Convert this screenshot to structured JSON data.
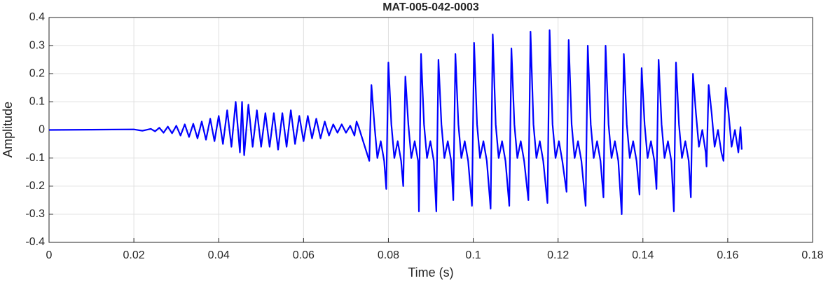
{
  "chart_data": {
    "type": "line",
    "title": "MAT-005-042-0003",
    "xlabel": "Time (s)",
    "ylabel": "Amplitude",
    "color": "#0000ff",
    "grid": true,
    "xlim": [
      0,
      0.18
    ],
    "xticks": [
      0,
      0.02,
      0.04,
      0.06,
      0.08,
      0.1,
      0.12,
      0.14,
      0.16,
      0.18
    ],
    "ylim": [
      -0.4,
      0.4
    ],
    "yticks": [
      -0.4,
      -0.3,
      -0.2,
      -0.1,
      0,
      0.1,
      0.2,
      0.3,
      0.4
    ],
    "x": [
      0,
      0.01,
      0.02,
      0.022,
      0.024,
      0.025,
      0.026,
      0.027,
      0.028,
      0.029,
      0.03,
      0.031,
      0.032,
      0.033,
      0.034,
      0.035,
      0.036,
      0.037,
      0.038,
      0.039,
      0.04,
      0.041,
      0.042,
      0.043,
      0.044,
      0.045,
      0.0455,
      0.046,
      0.047,
      0.048,
      0.049,
      0.05,
      0.051,
      0.052,
      0.053,
      0.054,
      0.055,
      0.056,
      0.057,
      0.058,
      0.059,
      0.06,
      0.061,
      0.062,
      0.063,
      0.064,
      0.065,
      0.066,
      0.067,
      0.068,
      0.069,
      0.07,
      0.071,
      0.072,
      0.0725,
      0.073,
      0.0755,
      0.076,
      0.0767,
      0.0774,
      0.0782,
      0.079,
      0.0795,
      0.08,
      0.0807,
      0.0814,
      0.0822,
      0.083,
      0.0835,
      0.084,
      0.0847,
      0.0854,
      0.0862,
      0.087,
      0.0872,
      0.0877,
      0.0884,
      0.0891,
      0.0899,
      0.0907,
      0.0913,
      0.0918,
      0.0925,
      0.0932,
      0.094,
      0.0948,
      0.0953,
      0.0958,
      0.0965,
      0.0972,
      0.098,
      0.0988,
      0.0997,
      0.1002,
      0.1009,
      0.1016,
      0.1024,
      0.1032,
      0.1041,
      0.1046,
      0.1053,
      0.106,
      0.1068,
      0.1076,
      0.1085,
      0.109,
      0.1097,
      0.1104,
      0.1112,
      0.112,
      0.113,
      0.1135,
      0.1142,
      0.1149,
      0.1157,
      0.1165,
      0.1175,
      0.118,
      0.1187,
      0.1194,
      0.1202,
      0.121,
      0.122,
      0.1225,
      0.1232,
      0.1239,
      0.1247,
      0.1255,
      0.1265,
      0.127,
      0.1277,
      0.1284,
      0.1292,
      0.13,
      0.1307,
      0.1312,
      0.1319,
      0.1326,
      0.1334,
      0.1342,
      0.135,
      0.1355,
      0.1362,
      0.1369,
      0.1377,
      0.1385,
      0.1392,
      0.1397,
      0.1404,
      0.1411,
      0.1419,
      0.1427,
      0.1432,
      0.1437,
      0.1444,
      0.1451,
      0.1459,
      0.1467,
      0.1473,
      0.1478,
      0.1485,
      0.1492,
      0.15,
      0.1508,
      0.1513,
      0.1518,
      0.1525,
      0.1532,
      0.154,
      0.1548,
      0.155,
      0.1555,
      0.1562,
      0.1569,
      0.1577,
      0.1585,
      0.159,
      0.1595,
      0.1602,
      0.1609,
      0.1617,
      0.1625,
      0.163,
      0.1633
    ],
    "values": [
      0,
      0.001,
      0.002,
      -0.003,
      0.004,
      -0.005,
      0.008,
      -0.01,
      0.012,
      -0.012,
      0.015,
      -0.02,
      0.02,
      -0.025,
      0.022,
      -0.03,
      0.03,
      -0.035,
      0.04,
      -0.04,
      0.05,
      -0.05,
      0.07,
      -0.06,
      0.1,
      -0.08,
      0.1,
      -0.09,
      0.09,
      -0.06,
      0.07,
      -0.06,
      0.06,
      -0.06,
      0.06,
      -0.07,
      0.06,
      -0.06,
      0.07,
      -0.05,
      0.05,
      -0.04,
      0.05,
      -0.03,
      0.04,
      -0.03,
      0.03,
      -0.02,
      0.02,
      -0.01,
      0.02,
      -0.01,
      0.015,
      -0.02,
      0.03,
      0.01,
      -0.11,
      0.16,
      0.02,
      -0.1,
      -0.04,
      -0.11,
      -0.21,
      0.24,
      0.02,
      -0.1,
      -0.04,
      -0.11,
      -0.2,
      0.19,
      0.02,
      -0.1,
      -0.04,
      -0.11,
      -0.29,
      0.27,
      0.02,
      -0.1,
      -0.04,
      -0.11,
      -0.29,
      0.25,
      0.02,
      -0.1,
      -0.04,
      -0.11,
      -0.25,
      0.27,
      0.02,
      -0.1,
      -0.04,
      -0.11,
      -0.27,
      0.31,
      0.02,
      -0.1,
      -0.04,
      -0.11,
      -0.28,
      0.34,
      0.02,
      -0.1,
      -0.04,
      -0.11,
      -0.27,
      0.29,
      0.02,
      -0.1,
      -0.04,
      -0.11,
      -0.25,
      0.35,
      0.02,
      -0.1,
      -0.04,
      -0.11,
      -0.26,
      0.355,
      0.02,
      -0.1,
      -0.04,
      -0.11,
      -0.22,
      0.32,
      0.02,
      -0.1,
      -0.04,
      -0.11,
      -0.27,
      0.3,
      0.02,
      -0.1,
      -0.04,
      -0.11,
      -0.24,
      0.3,
      0.02,
      -0.1,
      -0.04,
      -0.11,
      -0.3,
      0.27,
      0.02,
      -0.1,
      -0.04,
      -0.11,
      -0.23,
      0.22,
      0.02,
      -0.1,
      -0.04,
      -0.11,
      -0.21,
      0.25,
      0.02,
      -0.1,
      -0.04,
      -0.11,
      -0.29,
      0.24,
      0.02,
      -0.1,
      -0.04,
      -0.11,
      -0.24,
      0.2,
      0.06,
      -0.06,
      0,
      -0.08,
      -0.13,
      0.16,
      0.06,
      -0.06,
      0,
      -0.08,
      -0.11,
      0.15,
      0.06,
      -0.06,
      0,
      -0.08,
      0.01,
      -0.07
    ]
  }
}
